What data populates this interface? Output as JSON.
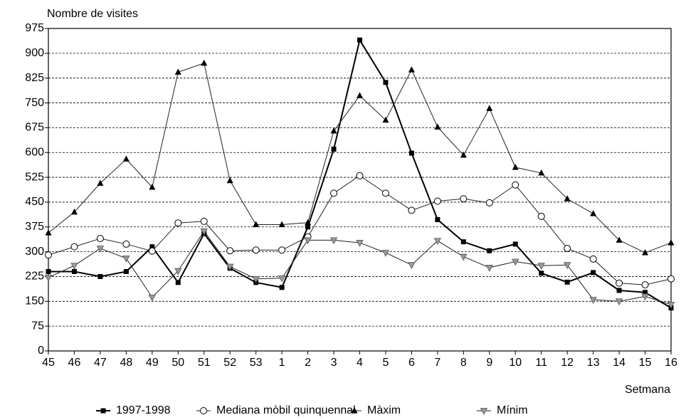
{
  "chart_data": {
    "type": "line",
    "y_label": "Nombre de visites",
    "x_label": "Setmana",
    "categories": [
      "45",
      "46",
      "47",
      "48",
      "49",
      "50",
      "51",
      "52",
      "53",
      "1",
      "2",
      "3",
      "4",
      "5",
      "6",
      "7",
      "8",
      "9",
      "10",
      "11",
      "12",
      "13",
      "14",
      "15",
      "16"
    ],
    "ylim": [
      0,
      975
    ],
    "yticks": [
      0,
      75,
      150,
      225,
      300,
      375,
      450,
      525,
      600,
      675,
      750,
      825,
      900,
      975
    ],
    "grid": true,
    "legend": "bottom",
    "series": [
      {
        "name": "1997-1998",
        "color": "#000000",
        "marker": "square",
        "values": [
          240,
          240,
          225,
          240,
          315,
          207,
          355,
          250,
          207,
          192,
          375,
          610,
          940,
          812,
          598,
          397,
          330,
          303,
          323,
          235,
          208,
          237,
          183,
          177,
          130
        ]
      },
      {
        "name": "Mediana mòbil quinquennal",
        "color": "#000000",
        "marker": "circle",
        "values": [
          290,
          315,
          340,
          323,
          302,
          387,
          392,
          303,
          305,
          305,
          345,
          477,
          530,
          477,
          425,
          453,
          460,
          448,
          502,
          407,
          310,
          278,
          205,
          200,
          218
        ]
      },
      {
        "name": "Màxim",
        "color": "#000000",
        "marker": "triangle-up",
        "values": [
          357,
          420,
          507,
          580,
          495,
          843,
          870,
          515,
          382,
          382,
          388,
          665,
          772,
          698,
          850,
          677,
          592,
          733,
          555,
          538,
          460,
          415,
          335,
          297,
          327
        ]
      },
      {
        "name": "Mínim",
        "color": "#999999",
        "marker": "triangle-down",
        "values": [
          222,
          258,
          310,
          280,
          162,
          242,
          362,
          255,
          218,
          220,
          335,
          335,
          327,
          297,
          260,
          333,
          285,
          252,
          270,
          258,
          260,
          155,
          150,
          165,
          140
        ]
      }
    ]
  }
}
